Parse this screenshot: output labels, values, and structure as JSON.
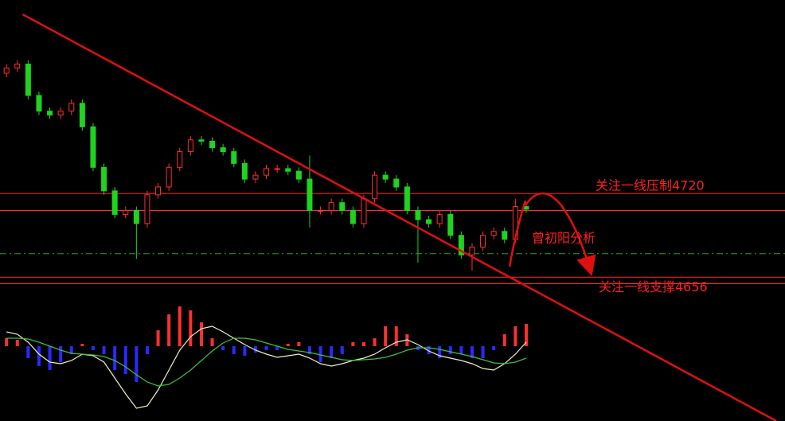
{
  "chart_data": [
    {
      "type": "candlestick",
      "xlim": [
        -0.6,
        71.9
      ],
      "ylim": [
        4546,
        4868
      ],
      "up_color": "#ff3030",
      "down_color": "#1fd31f",
      "open": [
        4812,
        4816,
        4819,
        4795,
        4783,
        4780,
        4783,
        4789,
        4771,
        4740,
        4722,
        4704,
        4707,
        4697,
        4719,
        4725,
        4740,
        4752,
        4761,
        4760,
        4755,
        4752,
        4743,
        4731,
        4734,
        4739,
        4739,
        4737,
        4731,
        4707,
        4707,
        4713,
        4707,
        4697,
        4716,
        4734,
        4731,
        4725,
        4707,
        4700,
        4697,
        4704,
        4688,
        4673,
        4679,
        4688,
        4691,
        4685,
        4710
      ],
      "high": [
        4819,
        4822,
        4822,
        4798,
        4786,
        4786,
        4792,
        4792,
        4774,
        4743,
        4725,
        4710,
        4710,
        4722,
        4728,
        4743,
        4755,
        4764,
        4764,
        4763,
        4758,
        4755,
        4746,
        4737,
        4742,
        4742,
        4742,
        4740,
        4749,
        4710,
        4716,
        4716,
        4710,
        4719,
        4737,
        4737,
        4734,
        4728,
        4710,
        4703,
        4707,
        4707,
        4691,
        4682,
        4691,
        4694,
        4694,
        4716,
        4713
      ],
      "low": [
        4809,
        4813,
        4792,
        4780,
        4777,
        4777,
        4780,
        4768,
        4737,
        4719,
        4701,
        4701,
        4670,
        4694,
        4716,
        4722,
        4737,
        4749,
        4757,
        4752,
        4749,
        4740,
        4728,
        4728,
        4731,
        4736,
        4734,
        4728,
        4694,
        4704,
        4704,
        4704,
        4694,
        4694,
        4713,
        4728,
        4722,
        4704,
        4667,
        4694,
        4694,
        4685,
        4670,
        4661,
        4676,
        4685,
        4682,
        4682,
        4705
      ],
      "close": [
        4816,
        4819,
        4795,
        4783,
        4780,
        4783,
        4789,
        4771,
        4740,
        4722,
        4704,
        4707,
        4697,
        4719,
        4725,
        4740,
        4752,
        4761,
        4760,
        4755,
        4752,
        4743,
        4731,
        4734,
        4739,
        4739,
        4737,
        4731,
        4707,
        4707,
        4713,
        4707,
        4697,
        4716,
        4734,
        4731,
        4725,
        4707,
        4700,
        4697,
        4704,
        4688,
        4673,
        4679,
        4688,
        4691,
        4685,
        4710,
        4708
      ],
      "levels": [
        {
          "value": 4720,
          "label": "关注一线压制4720",
          "color": "#ff3030"
        },
        {
          "value": 4656,
          "label": "关注一线支撑4656",
          "color": "#ff3030"
        }
      ],
      "hlines": [
        {
          "value": 4707,
          "color": "#ff3030",
          "dashed": false
        },
        {
          "value": 4674,
          "color": "#2fa02f",
          "dashed": true
        },
        {
          "value": 4651,
          "color": "#ff3030",
          "dashed": false
        }
      ],
      "trendline": {
        "x": [
          1.5,
          71.1
        ],
        "y": [
          4857,
          4546
        ],
        "color": "#e01010"
      },
      "annotation": "曾初阳分析"
    },
    {
      "type": "macd",
      "xlim": [
        -0.6,
        71.9
      ],
      "ylim": [
        -94,
        65
      ],
      "up_color": "#ff3030",
      "down_color": "#2a2aff",
      "histogram": [
        10,
        8,
        -15,
        -25,
        -30,
        -20,
        -10,
        3,
        -5,
        -10,
        -30,
        -35,
        -45,
        -10,
        20,
        40,
        50,
        45,
        30,
        10,
        -5,
        -10,
        -12,
        -8,
        -5,
        -5,
        3,
        5,
        -10,
        -20,
        -15,
        -10,
        5,
        5,
        10,
        25,
        25,
        15,
        -5,
        -10,
        -15,
        -10,
        -10,
        -15,
        -15,
        -5,
        15,
        25,
        28
      ],
      "series": [
        {
          "color": "#f0f0c8",
          "values": [
            18,
            15,
            5,
            -10,
            -20,
            -22,
            -18,
            -10,
            -12,
            -20,
            -40,
            -60,
            -78,
            -75,
            -55,
            -30,
            -5,
            12,
            22,
            25,
            18,
            10,
            2,
            -5,
            -10,
            -14,
            -12,
            -10,
            -15,
            -22,
            -25,
            -22,
            -18,
            -15,
            -10,
            -2,
            5,
            8,
            2,
            -6,
            -12,
            -15,
            -18,
            -22,
            -28,
            -30,
            -22,
            -10,
            5
          ]
        },
        {
          "color": "#40c040",
          "values": [
            10,
            10,
            9,
            5,
            0,
            -5,
            -9,
            -10,
            -11,
            -13,
            -18,
            -26,
            -36,
            -45,
            -50,
            -48,
            -40,
            -30,
            -18,
            -6,
            4,
            10,
            10,
            8,
            4,
            0,
            -4,
            -6,
            -8,
            -11,
            -14,
            -17,
            -18,
            -17,
            -16,
            -14,
            -10,
            -5,
            -2,
            -2,
            -4,
            -7,
            -10,
            -13,
            -17,
            -21,
            -22,
            -20,
            -15
          ]
        }
      ]
    }
  ]
}
